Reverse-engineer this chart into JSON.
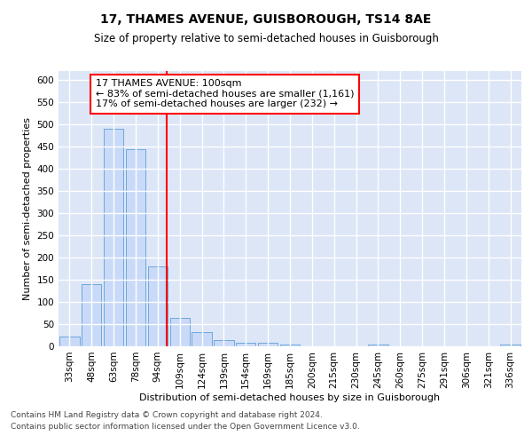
{
  "title": "17, THAMES AVENUE, GUISBOROUGH, TS14 8AE",
  "subtitle": "Size of property relative to semi-detached houses in Guisborough",
  "xlabel": "Distribution of semi-detached houses by size in Guisborough",
  "ylabel": "Number of semi-detached properties",
  "bin_labels": [
    "33sqm",
    "48sqm",
    "63sqm",
    "78sqm",
    "94sqm",
    "109sqm",
    "124sqm",
    "139sqm",
    "154sqm",
    "169sqm",
    "185sqm",
    "200sqm",
    "215sqm",
    "230sqm",
    "245sqm",
    "260sqm",
    "275sqm",
    "291sqm",
    "306sqm",
    "321sqm",
    "336sqm"
  ],
  "bar_values": [
    22,
    140,
    490,
    445,
    180,
    65,
    33,
    15,
    8,
    8,
    5,
    0,
    0,
    0,
    5,
    0,
    0,
    0,
    0,
    0,
    5
  ],
  "bar_color": "#c9daf8",
  "bar_edge_color": "#6fa8dc",
  "property_line_color": "red",
  "annotation_text": "17 THAMES AVENUE: 100sqm\n← 83% of semi-detached houses are smaller (1,161)\n17% of semi-detached houses are larger (232) →",
  "annotation_box_color": "white",
  "annotation_box_edge_color": "red",
  "footnote1": "Contains HM Land Registry data © Crown copyright and database right 2024.",
  "footnote2": "Contains public sector information licensed under the Open Government Licence v3.0.",
  "ylim": [
    0,
    620
  ],
  "yticks": [
    0,
    50,
    100,
    150,
    200,
    250,
    300,
    350,
    400,
    450,
    500,
    550,
    600
  ],
  "background_color": "#dce6f7",
  "grid_color": "white",
  "title_fontsize": 10,
  "subtitle_fontsize": 8.5,
  "axis_label_fontsize": 8,
  "tick_fontsize": 7.5,
  "annotation_fontsize": 8,
  "footnote_fontsize": 6.5
}
